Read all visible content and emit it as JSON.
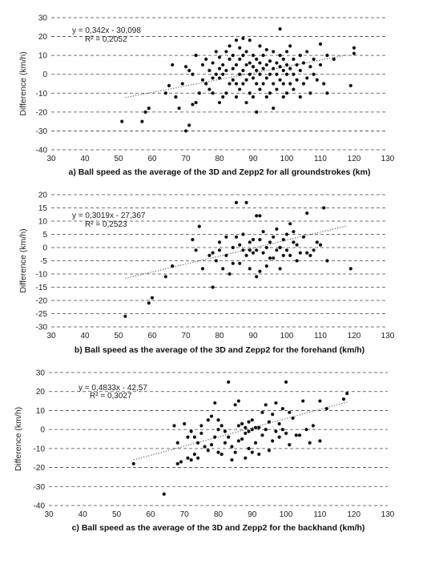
{
  "chart_data": [
    {
      "type": "scatter",
      "caption": "a) Ball speed as the average of the 3D and Zepp2 for all groundstrokes (km)",
      "ylabel": "Difference (km/h)",
      "xlim": [
        30,
        130
      ],
      "ylim": [
        -40,
        30
      ],
      "xticks": [
        30,
        40,
        50,
        60,
        70,
        80,
        90,
        100,
        110,
        120,
        130
      ],
      "yticks": [
        30,
        20,
        10,
        0,
        -10,
        -20,
        -30,
        -40
      ],
      "grid": "horizontal dashed",
      "equation": "y = 0,342x - 30,098",
      "r2": "R² = 0,2052",
      "trendline": {
        "slope": 0.342,
        "intercept": -30.098,
        "x_range": [
          52,
          118
        ]
      },
      "points": [
        [
          51,
          -25
        ],
        [
          57,
          -25
        ],
        [
          58,
          -20
        ],
        [
          59,
          -18
        ],
        [
          64,
          -10
        ],
        [
          65,
          -6
        ],
        [
          66,
          5
        ],
        [
          67,
          -12
        ],
        [
          68,
          -18
        ],
        [
          69,
          -5
        ],
        [
          70,
          -30
        ],
        [
          70,
          4
        ],
        [
          71,
          -27
        ],
        [
          71,
          2
        ],
        [
          72,
          -16
        ],
        [
          72,
          0
        ],
        [
          73,
          -15
        ],
        [
          73,
          10
        ],
        [
          74,
          -10
        ],
        [
          75,
          5
        ],
        [
          75,
          -3
        ],
        [
          76,
          -5
        ],
        [
          76,
          8
        ],
        [
          77,
          -8
        ],
        [
          77,
          2
        ],
        [
          78,
          -10
        ],
        [
          78,
          -2
        ],
        [
          78,
          6
        ],
        [
          79,
          12
        ],
        [
          79,
          0
        ],
        [
          80,
          -15
        ],
        [
          80,
          -2
        ],
        [
          80,
          3
        ],
        [
          80,
          9
        ],
        [
          81,
          -12
        ],
        [
          81,
          0
        ],
        [
          81,
          5
        ],
        [
          82,
          -10
        ],
        [
          82,
          2
        ],
        [
          82,
          12
        ],
        [
          83,
          -5
        ],
        [
          83,
          8
        ],
        [
          83,
          15
        ],
        [
          84,
          -3
        ],
        [
          84,
          3
        ],
        [
          84,
          10
        ],
        [
          85,
          -12
        ],
        [
          85,
          -5
        ],
        [
          85,
          5
        ],
        [
          85,
          18
        ],
        [
          86,
          -8
        ],
        [
          86,
          0
        ],
        [
          86,
          8
        ],
        [
          86,
          14
        ],
        [
          87,
          -5
        ],
        [
          87,
          2
        ],
        [
          87,
          10
        ],
        [
          87,
          19
        ],
        [
          88,
          -15
        ],
        [
          88,
          -3
        ],
        [
          88,
          5
        ],
        [
          88,
          12
        ],
        [
          89,
          -10
        ],
        [
          89,
          0
        ],
        [
          89,
          6
        ],
        [
          89,
          18
        ],
        [
          90,
          -12
        ],
        [
          90,
          -2
        ],
        [
          90,
          4
        ],
        [
          90,
          10
        ],
        [
          91,
          -20
        ],
        [
          91,
          -5
        ],
        [
          91,
          2
        ],
        [
          91,
          8
        ],
        [
          92,
          -8
        ],
        [
          92,
          0
        ],
        [
          92,
          6
        ],
        [
          92,
          15
        ],
        [
          93,
          -5
        ],
        [
          93,
          3
        ],
        [
          93,
          10
        ],
        [
          94,
          -12
        ],
        [
          94,
          -2
        ],
        [
          94,
          5
        ],
        [
          94,
          13
        ],
        [
          95,
          -10
        ],
        [
          95,
          0
        ],
        [
          95,
          7
        ],
        [
          96,
          -18
        ],
        [
          96,
          -5
        ],
        [
          96,
          3
        ],
        [
          96,
          12
        ],
        [
          97,
          -8
        ],
        [
          97,
          0
        ],
        [
          97,
          6
        ],
        [
          98,
          -3
        ],
        [
          98,
          4
        ],
        [
          98,
          10
        ],
        [
          98,
          24
        ],
        [
          99,
          -12
        ],
        [
          99,
          -5
        ],
        [
          99,
          2
        ],
        [
          99,
          8
        ],
        [
          100,
          -10
        ],
        [
          100,
          0
        ],
        [
          100,
          5
        ],
        [
          100,
          12
        ],
        [
          101,
          -5
        ],
        [
          101,
          3
        ],
        [
          101,
          15
        ],
        [
          102,
          -8
        ],
        [
          102,
          0
        ],
        [
          102,
          8
        ],
        [
          103,
          -3
        ],
        [
          103,
          5
        ],
        [
          104,
          -12
        ],
        [
          104,
          2
        ],
        [
          104,
          10
        ],
        [
          105,
          -5
        ],
        [
          105,
          6
        ],
        [
          106,
          -2
        ],
        [
          106,
          12
        ],
        [
          107,
          -10
        ],
        [
          107,
          4
        ],
        [
          108,
          0
        ],
        [
          108,
          8
        ],
        [
          109,
          -3
        ],
        [
          110,
          5
        ],
        [
          110,
          16
        ],
        [
          111,
          -5
        ],
        [
          112,
          -10
        ],
        [
          112,
          10
        ],
        [
          114,
          8
        ],
        [
          119,
          -6
        ],
        [
          120,
          11
        ],
        [
          120,
          14
        ]
      ]
    },
    {
      "type": "scatter",
      "caption": "b) Ball speed as the average of the 3D and Zepp2 for the forehand (km/h)",
      "ylabel": "Difference (km/h)",
      "xlim": [
        30,
        130
      ],
      "ylim": [
        -30,
        20
      ],
      "xticks": [
        30,
        40,
        50,
        60,
        70,
        80,
        90,
        100,
        110,
        120,
        130
      ],
      "yticks": [
        20,
        15,
        10,
        5,
        0,
        -5,
        -10,
        -15,
        -20,
        -25,
        -30
      ],
      "grid": "horizontal dashed",
      "equation": "y = 0,3019x - 27,367",
      "r2": "R² = 0,2523",
      "trendline": {
        "slope": 0.3019,
        "intercept": -27.367,
        "x_range": [
          52,
          118
        ]
      },
      "points": [
        [
          52,
          -26
        ],
        [
          59,
          -21
        ],
        [
          60,
          -19
        ],
        [
          64,
          -11
        ],
        [
          66,
          -7
        ],
        [
          72,
          3
        ],
        [
          73,
          -1
        ],
        [
          74,
          8
        ],
        [
          75,
          -8
        ],
        [
          77,
          -3
        ],
        [
          78,
          -15
        ],
        [
          78,
          -2
        ],
        [
          79,
          -5
        ],
        [
          80,
          -1
        ],
        [
          80,
          2
        ],
        [
          81,
          -8
        ],
        [
          82,
          -3
        ],
        [
          82,
          4
        ],
        [
          83,
          -10
        ],
        [
          84,
          -6
        ],
        [
          84,
          0
        ],
        [
          85,
          4
        ],
        [
          85,
          17
        ],
        [
          86,
          -6
        ],
        [
          86,
          1
        ],
        [
          87,
          -1
        ],
        [
          87,
          5
        ],
        [
          88,
          -3
        ],
        [
          88,
          17
        ],
        [
          89,
          -8
        ],
        [
          89,
          -1
        ],
        [
          89,
          2
        ],
        [
          90,
          -2
        ],
        [
          90,
          3
        ],
        [
          91,
          -11
        ],
        [
          91,
          -1
        ],
        [
          91,
          12
        ],
        [
          92,
          -9
        ],
        [
          92,
          3
        ],
        [
          92,
          12
        ],
        [
          93,
          -2
        ],
        [
          93,
          6
        ],
        [
          94,
          -7
        ],
        [
          94,
          0
        ],
        [
          95,
          -4
        ],
        [
          95,
          2
        ],
        [
          96,
          -4
        ],
        [
          96,
          4
        ],
        [
          97,
          -1
        ],
        [
          97,
          7
        ],
        [
          98,
          -8
        ],
        [
          98,
          0
        ],
        [
          99,
          -3
        ],
        [
          99,
          3
        ],
        [
          100,
          -1
        ],
        [
          100,
          5
        ],
        [
          101,
          -3
        ],
        [
          101,
          9
        ],
        [
          102,
          2
        ],
        [
          102,
          6
        ],
        [
          103,
          -5
        ],
        [
          103,
          1
        ],
        [
          104,
          -2
        ],
        [
          105,
          4
        ],
        [
          106,
          -2
        ],
        [
          106,
          13
        ],
        [
          107,
          -3
        ],
        [
          108,
          -1
        ],
        [
          109,
          2
        ],
        [
          110,
          1
        ],
        [
          111,
          15
        ],
        [
          112,
          -5
        ],
        [
          119,
          -8
        ]
      ]
    },
    {
      "type": "scatter",
      "caption": "c) Ball speed as the average of the 3D and Zepp2 for the backhand (km/h)",
      "ylabel": "Difference (km/h)",
      "xlim": [
        30,
        130
      ],
      "ylim": [
        -40,
        30
      ],
      "xticks": [
        30,
        40,
        50,
        60,
        70,
        80,
        90,
        100,
        110,
        120,
        130
      ],
      "yticks": [
        30,
        20,
        10,
        0,
        -10,
        -20,
        -30,
        -40
      ],
      "grid": "horizontal dashed",
      "equation": "y = 0,4833x - 42,57",
      "r2": "R² = 0,3027",
      "trendline": {
        "slope": 0.4833,
        "intercept": -42.57,
        "x_range": [
          55,
          118
        ]
      },
      "points": [
        [
          55,
          -18
        ],
        [
          64,
          -34
        ],
        [
          67,
          2
        ],
        [
          68,
          -18
        ],
        [
          68,
          -7
        ],
        [
          69,
          -17
        ],
        [
          70,
          3
        ],
        [
          71,
          -15
        ],
        [
          71,
          -4
        ],
        [
          72,
          -16
        ],
        [
          72,
          -1
        ],
        [
          73,
          -13
        ],
        [
          73,
          -4
        ],
        [
          74,
          -15
        ],
        [
          74,
          -7
        ],
        [
          75,
          -2
        ],
        [
          75,
          2
        ],
        [
          76,
          -9
        ],
        [
          77,
          -11
        ],
        [
          77,
          5
        ],
        [
          78,
          7
        ],
        [
          78,
          -8
        ],
        [
          79,
          14
        ],
        [
          79,
          -4
        ],
        [
          80,
          -12
        ],
        [
          80,
          0
        ],
        [
          80,
          5
        ],
        [
          81,
          -13
        ],
        [
          81,
          2
        ],
        [
          82,
          -7
        ],
        [
          82,
          -1
        ],
        [
          83,
          25
        ],
        [
          83,
          -4
        ],
        [
          84,
          -16
        ],
        [
          84,
          -9
        ],
        [
          85,
          13
        ],
        [
          85,
          -12
        ],
        [
          86,
          -6
        ],
        [
          86,
          2
        ],
        [
          86,
          15
        ],
        [
          87,
          -5
        ],
        [
          87,
          3
        ],
        [
          88,
          -15
        ],
        [
          88,
          -2
        ],
        [
          88,
          1
        ],
        [
          89,
          -10
        ],
        [
          89,
          -1
        ],
        [
          89,
          4
        ],
        [
          90,
          -12
        ],
        [
          90,
          0
        ],
        [
          90,
          5
        ],
        [
          91,
          -7
        ],
        [
          91,
          1
        ],
        [
          92,
          1
        ],
        [
          92,
          -13
        ],
        [
          93,
          -3
        ],
        [
          93,
          9
        ],
        [
          94,
          0
        ],
        [
          94,
          13
        ],
        [
          95,
          -11
        ],
        [
          95,
          4
        ],
        [
          96,
          -6
        ],
        [
          96,
          8
        ],
        [
          97,
          -1
        ],
        [
          97,
          14
        ],
        [
          98,
          -4
        ],
        [
          98,
          3
        ],
        [
          99,
          11
        ],
        [
          99,
          0
        ],
        [
          100,
          25
        ],
        [
          100,
          -2
        ],
        [
          101,
          9
        ],
        [
          101,
          -8
        ],
        [
          102,
          6
        ],
        [
          103,
          -3
        ],
        [
          104,
          -3
        ],
        [
          105,
          15
        ],
        [
          106,
          0
        ],
        [
          107,
          -7
        ],
        [
          108,
          2
        ],
        [
          110,
          -6
        ],
        [
          110,
          15
        ],
        [
          112,
          11
        ],
        [
          117,
          16
        ],
        [
          118,
          19
        ]
      ]
    }
  ]
}
